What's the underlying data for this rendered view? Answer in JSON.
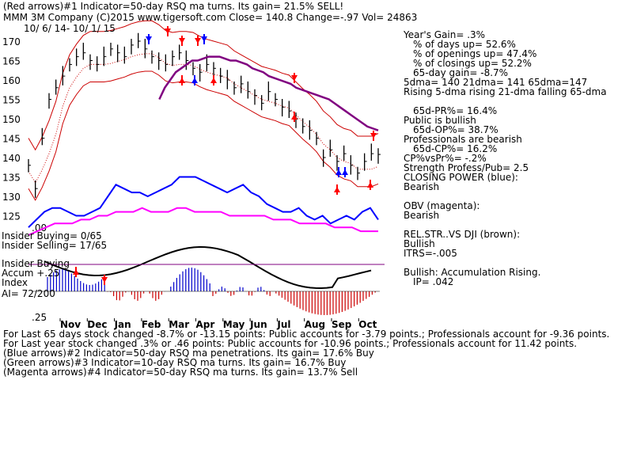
{
  "header": {
    "line1": "(Red arrows)#1 Indicator=50-day RSQ ma turns. Its gain= 21.5% SELL!",
    "line2": "MMM   3M Company  (C)2015 www.tigersoft.com    Close=  140.8  Change=-.97 Vol= 24863",
    "date_range": "10/ 6/ 14- 10/ 1/ 15"
  },
  "stats": [
    {
      "text": "Year's Gain= .3%",
      "indent": false
    },
    {
      "text": "% of days up= 52.6%",
      "indent": true
    },
    {
      "text": "% of openings up= 47.4%",
      "indent": true
    },
    {
      "text": "% of closings up= 52.2%",
      "indent": true
    },
    {
      "text": "65-day gain= -8.7%",
      "indent": true
    },
    {
      "text": "5dma= 140 21dma= 141 65dma=147",
      "indent": false
    },
    {
      "text": "Rising 5-dma rising 21-dma falling 65-dma",
      "indent": false
    },
    {
      "text": "",
      "indent": false
    },
    {
      "text": "65d-PR%= 16.4%",
      "indent": true
    },
    {
      "text": "Public is bullish",
      "indent": false
    },
    {
      "text": "65d-OP%= 38.7%",
      "indent": true
    },
    {
      "text": "Professionals are bearish",
      "indent": false
    },
    {
      "text": "65d-CP%= 16.2%",
      "indent": true
    },
    {
      "text": "CP%vsPr%= -.2%",
      "indent": false
    },
    {
      "text": "Strength Profess/Pub= 2.5",
      "indent": false
    },
    {
      "text": "CLOSING POWER (blue):",
      "indent": false
    },
    {
      "text": "Bearish",
      "indent": false
    },
    {
      "text": "",
      "indent": false
    },
    {
      "text": "OBV (magenta):",
      "indent": false
    },
    {
      "text": "Bearish",
      "indent": false
    },
    {
      "text": "",
      "indent": false
    },
    {
      "text": "REL.STR..VS DJI (brown):",
      "indent": false
    },
    {
      "text": "Bullish",
      "indent": false
    },
    {
      "text": "ITRS=-.005",
      "indent": false
    },
    {
      "text": "",
      "indent": false
    },
    {
      "text": "Bullish: Accumulation Rising.",
      "indent": false
    },
    {
      "text": "IP=  .042",
      "indent": true
    }
  ],
  "left_labels": {
    "insider_buying": "Insider Buying= 0/65",
    "insider_selling": "Insider Selling= 17/65",
    "insider_buying2": "Insider Buying",
    "accum": "Accum +.25",
    "index": "Index",
    "ai": "AI= 72/200",
    "neg_tick": ".25",
    "zero_tick": ".00"
  },
  "footer": [
    "For Last 65 days stock changed  -8.7% or -13.15 points:  Public accounts for -3.79 points.;  Professionals account for -9.36 points.",
    "For Last year stock changed   .3% or  .46 points:  Public accounts for -10.96 points.;  Professionals account for  11.42 points.",
    "(Blue arrows)#2 Indicator=50-day RSQ ma penetrations. Its gain= 17.6% Buy",
    "(Green arrows)#3 Indicator=10-day RSQ ma turns. Its gain= 16.7% Buy",
    "(Magenta arrows)#4 Indicator=50-day RSQ ma turns. Its gain= 13.7% Sell"
  ],
  "colors": {
    "price": "#000000",
    "band": "#cc0000",
    "ma65": "#800080",
    "closing_power": "#0000ff",
    "obv": "#ff00ff",
    "rel_strength": "#000000",
    "accum_pos": "#0000cc",
    "accum_neg": "#cc0000",
    "sell_arrow": "#ff0000",
    "buy_arrow": "#0000ff"
  },
  "chart_data": {
    "type": "line",
    "title": "MMM  3M Company",
    "xlabel": "",
    "ylabel": "",
    "x_ticks": [
      "Nov",
      "Dec",
      "Jan",
      "Feb",
      "Mar",
      "Apr",
      "May",
      "Jun",
      "Jul",
      "Aug",
      "Sep",
      "Oct"
    ],
    "y_ticks": [
      170,
      165,
      160,
      155,
      150,
      145,
      140,
      135,
      130,
      125
    ],
    "ylim": [
      122,
      174
    ],
    "grid": false,
    "series": [
      {
        "name": "Close",
        "values": [
          138,
          132,
          145,
          155,
          158,
          161,
          164,
          166,
          167,
          165,
          164,
          166,
          168,
          167,
          166,
          169,
          170,
          168,
          166,
          165,
          164,
          166,
          167,
          165,
          163,
          162,
          164,
          163,
          161,
          160,
          158,
          159,
          157,
          156,
          154,
          157,
          155,
          153,
          152,
          150,
          148,
          147,
          145,
          140,
          142,
          139,
          141,
          138,
          136,
          139,
          141,
          140.8
        ]
      },
      {
        "name": "65-dma",
        "values": [
          null,
          null,
          null,
          null,
          null,
          null,
          null,
          null,
          155,
          158,
          160,
          162,
          163,
          164,
          165,
          165,
          165.5,
          166,
          166,
          166,
          165.5,
          165,
          165,
          164.5,
          164,
          163,
          162.5,
          162,
          161,
          160.5,
          160,
          159.5,
          159,
          158,
          157.5,
          157,
          156.5,
          156,
          155.5,
          155,
          154,
          153,
          152,
          151,
          150,
          149,
          148,
          147.5,
          147
        ]
      },
      {
        "name": "Closing Power",
        "values": [
          122,
          124,
          126,
          127,
          127,
          126,
          125,
          125,
          126,
          127,
          130,
          133,
          132,
          131,
          131,
          130,
          131,
          132,
          133,
          135,
          135,
          135,
          134,
          133,
          132,
          131,
          132,
          133,
          131,
          130,
          128,
          127,
          126,
          126,
          127,
          125,
          124,
          125,
          123,
          124,
          125,
          124,
          126,
          127,
          124
        ]
      },
      {
        "name": "OBV",
        "values": [
          120,
          121,
          122,
          123,
          123,
          123,
          124,
          124,
          125,
          125,
          126,
          126,
          126,
          127,
          126,
          126,
          126,
          127,
          127,
          126,
          126,
          126,
          126,
          125,
          125,
          125,
          125,
          125,
          124,
          124,
          124,
          123,
          123,
          123,
          123,
          122,
          122,
          122,
          121,
          121,
          121
        ]
      }
    ]
  }
}
